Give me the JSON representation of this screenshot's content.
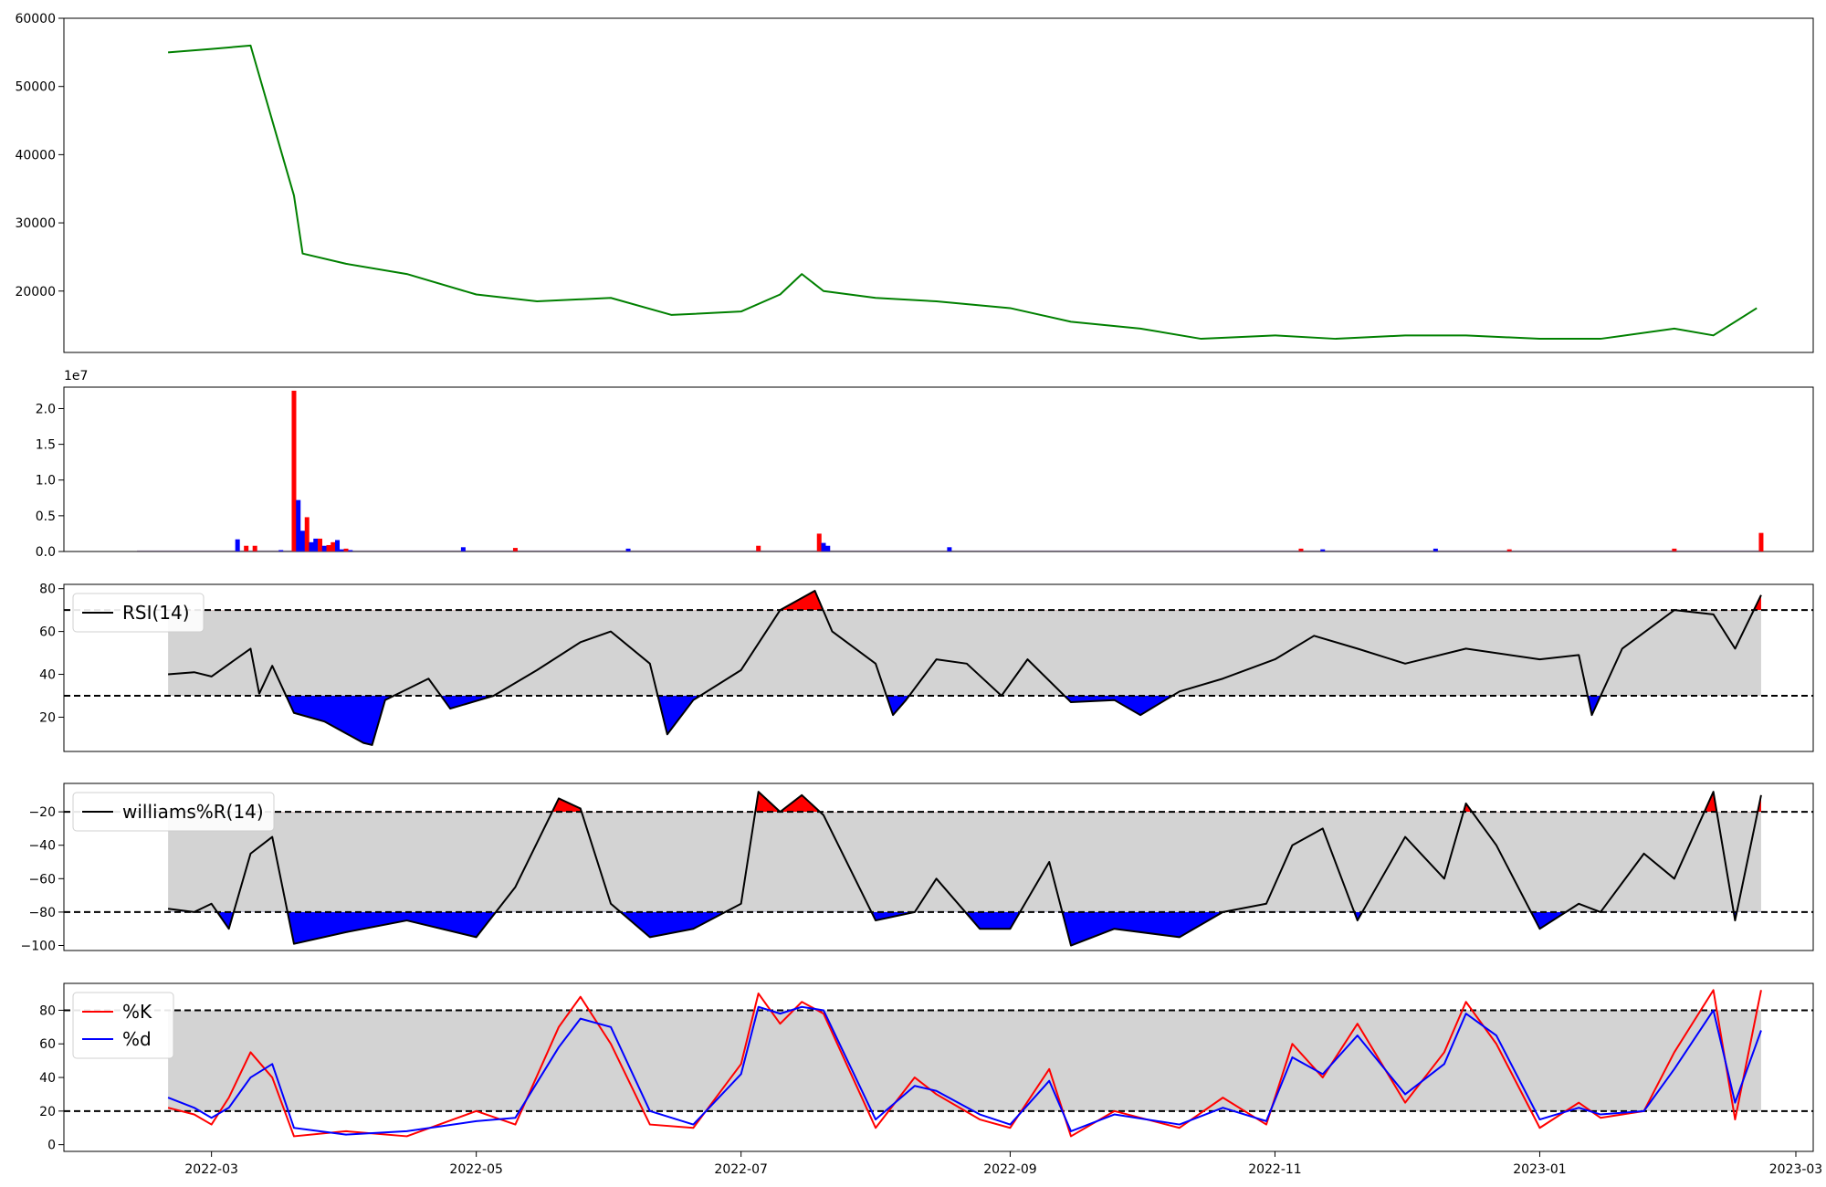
{
  "chart_data": [
    {
      "type": "line",
      "panel": "price",
      "color": "#008000",
      "ylim": [
        11000,
        60000
      ],
      "yticks": [
        20000,
        30000,
        40000,
        50000,
        60000
      ],
      "ytick_labels": [
        "20000",
        "30000",
        "40000",
        "50000",
        "60000"
      ],
      "x": [
        "2022-02-19",
        "2022-03-01",
        "2022-03-10",
        "2022-03-15",
        "2022-03-20",
        "2022-03-22",
        "2022-04-01",
        "2022-04-15",
        "2022-05-01",
        "2022-05-15",
        "2022-06-01",
        "2022-06-15",
        "2022-07-01",
        "2022-07-10",
        "2022-07-15",
        "2022-07-20",
        "2022-08-01",
        "2022-08-15",
        "2022-09-01",
        "2022-09-15",
        "2022-10-01",
        "2022-10-15",
        "2022-11-01",
        "2022-11-15",
        "2022-12-01",
        "2022-12-15",
        "2023-01-01",
        "2023-01-15",
        "2023-02-01",
        "2023-02-10",
        "2023-02-20"
      ],
      "values": [
        55000,
        55500,
        56000,
        45000,
        34000,
        25500,
        24000,
        22500,
        19500,
        18500,
        19000,
        16500,
        17000,
        19500,
        22500,
        20000,
        19000,
        18500,
        17500,
        15500,
        14500,
        13000,
        13500,
        13000,
        13500,
        13500,
        13000,
        13000,
        14500,
        13500,
        17500
      ]
    },
    {
      "type": "bar",
      "panel": "volume",
      "offset_label": "1e7",
      "ylim": [
        0,
        2.3
      ],
      "yticks": [
        0.0,
        0.5,
        1.0,
        1.5,
        2.0
      ],
      "ytick_labels": [
        "0.0",
        "0.5",
        "1.0",
        "1.5",
        "2.0"
      ],
      "up_color": "#0000ff",
      "down_color": "#ff0000",
      "x": [
        "2022-03-07",
        "2022-03-09",
        "2022-03-11",
        "2022-03-17",
        "2022-03-20",
        "2022-03-21",
        "2022-03-22",
        "2022-03-23",
        "2022-03-24",
        "2022-03-25",
        "2022-03-26",
        "2022-03-27",
        "2022-03-28",
        "2022-03-29",
        "2022-03-30",
        "2022-03-31",
        "2022-04-01",
        "2022-04-02",
        "2022-04-28",
        "2022-05-10",
        "2022-06-05",
        "2022-07-05",
        "2022-07-19",
        "2022-07-20",
        "2022-07-21",
        "2022-08-18",
        "2022-11-07",
        "2022-11-12",
        "2022-12-08",
        "2022-12-25",
        "2023-02-01",
        "2023-02-21"
      ],
      "values": [
        0.17,
        0.08,
        0.08,
        0.02,
        2.25,
        0.72,
        0.29,
        0.48,
        0.13,
        0.18,
        0.18,
        0.08,
        0.09,
        0.13,
        0.16,
        0.03,
        0.04,
        0.02,
        0.06,
        0.05,
        0.04,
        0.08,
        0.25,
        0.12,
        0.08,
        0.06,
        0.04,
        0.03,
        0.04,
        0.03,
        0.04,
        0.26
      ],
      "colors": [
        "b",
        "r",
        "r",
        "b",
        "r",
        "b",
        "b",
        "r",
        "b",
        "b",
        "r",
        "b",
        "r",
        "r",
        "b",
        "b",
        "r",
        "b",
        "b",
        "r",
        "b",
        "r",
        "r",
        "b",
        "b",
        "b",
        "r",
        "b",
        "b",
        "r",
        "r",
        "r"
      ]
    },
    {
      "type": "line",
      "panel": "rsi",
      "legend": [
        "RSI(14)"
      ],
      "ylim": [
        4,
        82
      ],
      "yticks": [
        20,
        40,
        60,
        80
      ],
      "ytick_labels": [
        "20",
        "40",
        "60",
        "80"
      ],
      "upper": 70,
      "lower": 30,
      "x": [
        "2022-02-19",
        "2022-02-25",
        "2022-03-01",
        "2022-03-10",
        "2022-03-12",
        "2022-03-15",
        "2022-03-20",
        "2022-03-27",
        "2022-04-05",
        "2022-04-07",
        "2022-04-10",
        "2022-04-20",
        "2022-04-25",
        "2022-05-05",
        "2022-05-15",
        "2022-05-25",
        "2022-06-01",
        "2022-06-10",
        "2022-06-14",
        "2022-06-20",
        "2022-07-01",
        "2022-07-10",
        "2022-07-18",
        "2022-07-22",
        "2022-08-01",
        "2022-08-05",
        "2022-08-08",
        "2022-08-15",
        "2022-08-22",
        "2022-08-30",
        "2022-09-05",
        "2022-09-15",
        "2022-09-25",
        "2022-10-01",
        "2022-10-10",
        "2022-10-20",
        "2022-11-01",
        "2022-11-10",
        "2022-11-20",
        "2022-12-01",
        "2022-12-15",
        "2023-01-01",
        "2023-01-10",
        "2023-01-13",
        "2023-01-20",
        "2023-02-01",
        "2023-02-10",
        "2023-02-15",
        "2023-02-21"
      ],
      "values": [
        40,
        41,
        39,
        52,
        31,
        44,
        22,
        18,
        8,
        7,
        28,
        38,
        24,
        30,
        42,
        55,
        60,
        45,
        12,
        28,
        42,
        70,
        79,
        60,
        45,
        21,
        28,
        47,
        45,
        30,
        47,
        27,
        28,
        21,
        32,
        38,
        47,
        58,
        52,
        45,
        52,
        47,
        49,
        21,
        52,
        70,
        68,
        52,
        77
      ]
    },
    {
      "type": "line",
      "panel": "williams",
      "legend": [
        "williams%R(14)"
      ],
      "ylim": [
        -103,
        -3
      ],
      "yticks": [
        -100,
        -80,
        -60,
        -40,
        -20
      ],
      "ytick_labels": [
        "−100",
        "−80",
        "−60",
        "−40",
        "−20"
      ],
      "upper": -20,
      "lower": -80,
      "x": [
        "2022-02-19",
        "2022-02-25",
        "2022-03-01",
        "2022-03-05",
        "2022-03-10",
        "2022-03-15",
        "2022-03-20",
        "2022-04-01",
        "2022-04-15",
        "2022-05-01",
        "2022-05-10",
        "2022-05-20",
        "2022-05-25",
        "2022-06-01",
        "2022-06-10",
        "2022-06-20",
        "2022-07-01",
        "2022-07-05",
        "2022-07-10",
        "2022-07-15",
        "2022-07-20",
        "2022-08-01",
        "2022-08-10",
        "2022-08-15",
        "2022-08-25",
        "2022-09-01",
        "2022-09-10",
        "2022-09-15",
        "2022-09-25",
        "2022-10-10",
        "2022-10-20",
        "2022-10-30",
        "2022-11-05",
        "2022-11-12",
        "2022-11-20",
        "2022-12-01",
        "2022-12-10",
        "2022-12-15",
        "2022-12-22",
        "2023-01-01",
        "2023-01-10",
        "2023-01-15",
        "2023-01-25",
        "2023-02-01",
        "2023-02-10",
        "2023-02-15",
        "2023-02-21"
      ],
      "values": [
        -78,
        -80,
        -75,
        -90,
        -45,
        -35,
        -99,
        -92,
        -85,
        -95,
        -65,
        -12,
        -18,
        -75,
        -95,
        -90,
        -75,
        -8,
        -20,
        -10,
        -22,
        -85,
        -80,
        -60,
        -90,
        -90,
        -50,
        -100,
        -90,
        -95,
        -80,
        -75,
        -40,
        -30,
        -85,
        -35,
        -60,
        -15,
        -40,
        -90,
        -75,
        -80,
        -45,
        -60,
        -8,
        -85,
        -10
      ]
    },
    {
      "type": "line",
      "panel": "stochastic",
      "legend": [
        "%K",
        "%d"
      ],
      "ylim": [
        -4,
        96
      ],
      "yticks": [
        0,
        20,
        40,
        60,
        80
      ],
      "ytick_labels": [
        "0",
        "20",
        "40",
        "60",
        "80"
      ],
      "upper": 80,
      "lower": 20,
      "x": [
        "2022-02-19",
        "2022-02-25",
        "2022-03-01",
        "2022-03-05",
        "2022-03-10",
        "2022-03-15",
        "2022-03-20",
        "2022-04-01",
        "2022-04-15",
        "2022-05-01",
        "2022-05-10",
        "2022-05-20",
        "2022-05-25",
        "2022-06-01",
        "2022-06-10",
        "2022-06-20",
        "2022-07-01",
        "2022-07-05",
        "2022-07-10",
        "2022-07-15",
        "2022-07-20",
        "2022-08-01",
        "2022-08-10",
        "2022-08-15",
        "2022-08-25",
        "2022-09-01",
        "2022-09-10",
        "2022-09-15",
        "2022-09-25",
        "2022-10-10",
        "2022-10-20",
        "2022-10-30",
        "2022-11-05",
        "2022-11-12",
        "2022-11-20",
        "2022-12-01",
        "2022-12-10",
        "2022-12-15",
        "2022-12-22",
        "2023-01-01",
        "2023-01-10",
        "2023-01-15",
        "2023-01-25",
        "2023-02-01",
        "2023-02-10",
        "2023-02-15",
        "2023-02-21"
      ],
      "series": [
        {
          "name": "%K",
          "color": "#ff0000",
          "values": [
            22,
            18,
            12,
            28,
            55,
            40,
            5,
            8,
            5,
            20,
            12,
            70,
            88,
            60,
            12,
            10,
            48,
            90,
            72,
            85,
            78,
            10,
            40,
            30,
            15,
            10,
            45,
            5,
            20,
            10,
            28,
            12,
            60,
            40,
            72,
            25,
            55,
            85,
            60,
            10,
            25,
            16,
            20,
            55,
            92,
            15,
            92
          ]
        },
        {
          "name": "%d",
          "color": "#0000ff",
          "values": [
            28,
            22,
            16,
            22,
            40,
            48,
            10,
            6,
            8,
            14,
            16,
            58,
            75,
            70,
            20,
            12,
            42,
            82,
            78,
            82,
            80,
            15,
            35,
            32,
            18,
            12,
            38,
            8,
            18,
            12,
            22,
            14,
            52,
            42,
            65,
            30,
            48,
            78,
            65,
            15,
            22,
            18,
            20,
            45,
            80,
            25,
            68
          ]
        }
      ]
    }
  ],
  "x_axis": {
    "domain": [
      "2022-01-26",
      "2023-03-05"
    ],
    "ticks": [
      "2022-03-01",
      "2022-05-01",
      "2022-07-01",
      "2022-09-01",
      "2022-11-01",
      "2023-01-01",
      "2023-03-01"
    ],
    "tick_labels": [
      "2022-03",
      "2022-05",
      "2022-07",
      "2022-09",
      "2022-11",
      "2023-01",
      "2023-03"
    ]
  },
  "colors": {
    "band_fill": "#d3d3d3",
    "overbought_fill": "#ff0000",
    "oversold_fill": "#0000ff",
    "indicator_line": "#000000"
  }
}
